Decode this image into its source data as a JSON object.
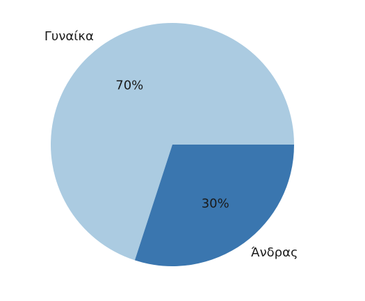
{
  "chart_data": {
    "type": "pie",
    "title": "",
    "slices": [
      {
        "label": "Γυναίκα",
        "value": 70,
        "pct_label": "70%",
        "color": "#abcbe1"
      },
      {
        "label": "Άνδρας",
        "value": 30,
        "pct_label": "30%",
        "color": "#3a76af"
      }
    ],
    "start_angle_deg": 0,
    "direction": "counterclockwise"
  }
}
